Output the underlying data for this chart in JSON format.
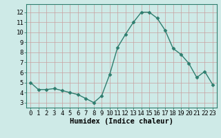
{
  "x": [
    0,
    1,
    2,
    3,
    4,
    5,
    6,
    7,
    8,
    9,
    10,
    11,
    12,
    13,
    14,
    15,
    16,
    17,
    18,
    19,
    20,
    21,
    22,
    23
  ],
  "y": [
    5.0,
    4.3,
    4.3,
    4.4,
    4.2,
    4.0,
    3.8,
    3.4,
    3.0,
    3.7,
    5.8,
    8.5,
    9.8,
    11.0,
    12.0,
    12.0,
    11.4,
    10.2,
    8.4,
    7.8,
    6.9,
    5.5,
    6.1,
    4.8
  ],
  "line_color": "#2e7d6e",
  "marker": "D",
  "marker_size": 2.5,
  "bg_color": "#ceeae7",
  "grid_color": "#c8a0a0",
  "xlabel": "Humidex (Indice chaleur)",
  "xlabel_fontsize": 7.5,
  "tick_fontsize": 6.5,
  "xtick_labels": [
    "0",
    "1",
    "2",
    "3",
    "4",
    "5",
    "6",
    "7",
    "8",
    "9",
    "10",
    "11",
    "12",
    "13",
    "14",
    "15",
    "16",
    "17",
    "18",
    "19",
    "20",
    "21",
    "22",
    "23"
  ],
  "ytick_values": [
    3,
    4,
    5,
    6,
    7,
    8,
    9,
    10,
    11,
    12
  ],
  "ylim": [
    2.5,
    12.8
  ],
  "xlim": [
    -0.5,
    23.5
  ]
}
